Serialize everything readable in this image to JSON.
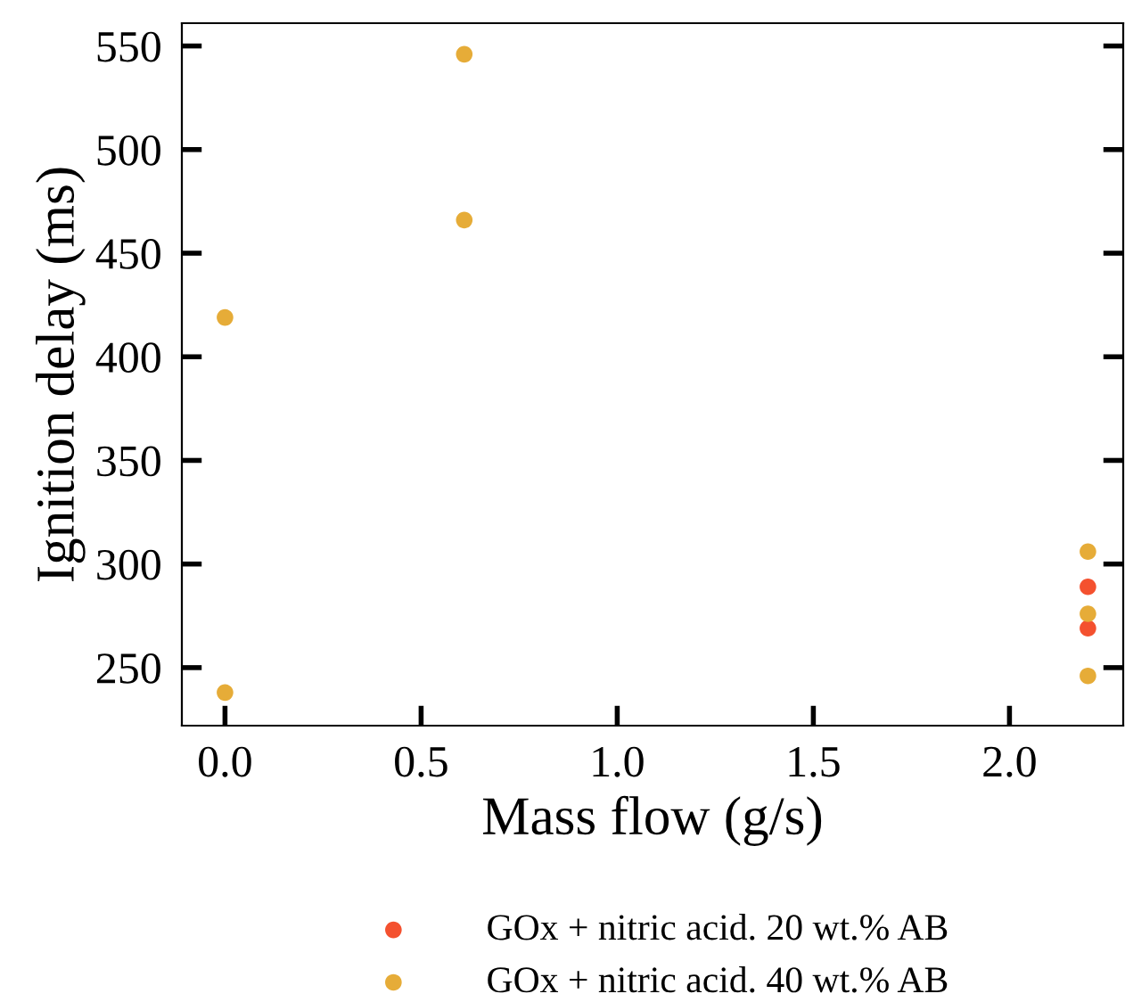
{
  "chart_data": {
    "type": "scatter",
    "xlabel": "Mass flow (g/s)",
    "ylabel": "Ignition delay (ms)",
    "xlim": [
      -0.11,
      2.29
    ],
    "ylim": [
      222,
      561
    ],
    "xticks": [
      {
        "value": 0,
        "label": "0.0"
      },
      {
        "value": 0.5,
        "label": "0.5"
      },
      {
        "value": 1,
        "label": "1.0"
      },
      {
        "value": 1.5,
        "label": "1.5"
      },
      {
        "value": 2,
        "label": "2.0"
      }
    ],
    "yticks": [
      250,
      300,
      350,
      400,
      450,
      500,
      550
    ],
    "grid": false,
    "legend": "bottom",
    "marker": "circle",
    "series": [
      {
        "name": "GOx + nitric acid. 20 wt.% AB",
        "color": "#f4512f",
        "x": [
          2.2,
          2.2
        ],
        "values": [
          289,
          269
        ]
      },
      {
        "name": "GOx + nitric acid. 40 wt.% AB",
        "color": "#e6ac38",
        "x": [
          0,
          0,
          0.61,
          0.61,
          2.2,
          2.2,
          2.2
        ],
        "values": [
          419,
          238,
          546,
          466,
          306,
          276,
          246
        ]
      }
    ]
  }
}
